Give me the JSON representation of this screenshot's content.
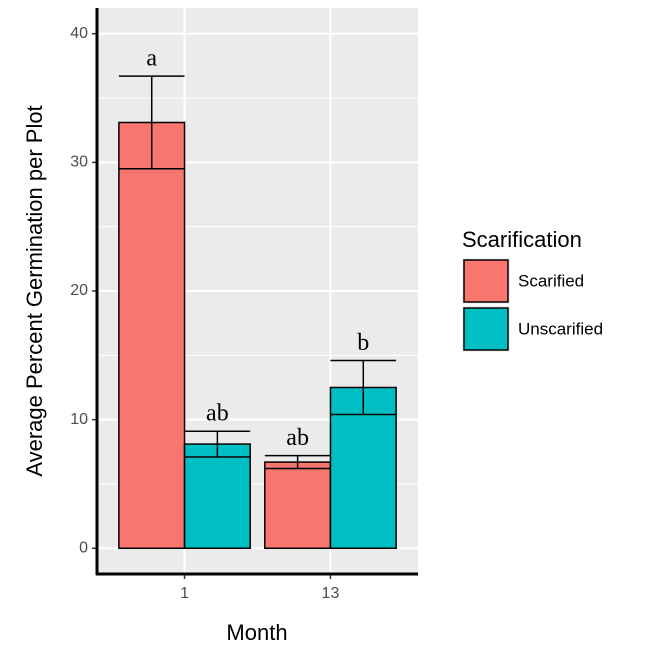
{
  "chart_data": {
    "type": "bar",
    "xlabel": "Month",
    "ylabel": "Average Percent Germination per Plot",
    "categories": [
      "1",
      "13"
    ],
    "series": [
      {
        "name": "Scarified",
        "color": "#F8766D",
        "values": [
          33.1,
          6.7
        ],
        "errors": [
          3.6,
          0.5
        ],
        "letters": [
          "a",
          "ab"
        ]
      },
      {
        "name": "Unscarified",
        "color": "#00BFC4",
        "values": [
          8.1,
          12.5
        ],
        "errors": [
          1.0,
          2.1
        ],
        "letters": [
          "ab",
          "b"
        ]
      }
    ],
    "ylim": [
      -2.0,
      42.0
    ],
    "yticks": [
      0,
      10,
      20,
      30,
      40
    ],
    "grid": true,
    "legend_title": "Scarification",
    "legend": "right"
  }
}
